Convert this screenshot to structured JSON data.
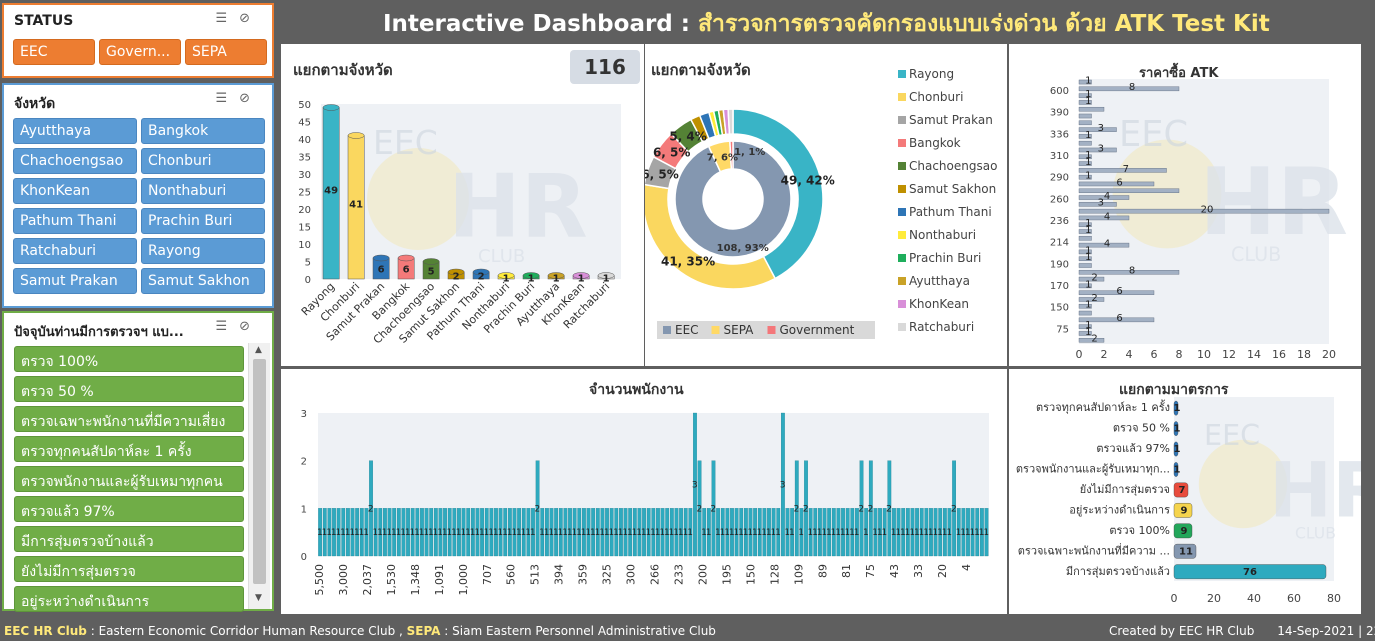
{
  "header": {
    "title_en": "Interactive Dashboard : ",
    "title_th": "สำรวจการตรวจคัดกรองแบบเร่งด่วน ด้วย ATK Test Kit"
  },
  "colors": {
    "title_white": "#ffffff",
    "title_yellow": "#ffe97a",
    "eec": "#8497b0",
    "sepa": "#ffd966",
    "government": "#f4777a",
    "bar_teal": "#2eaabf",
    "bar_yellow": "#f5d44d"
  },
  "status_slicer": {
    "title": "STATUS",
    "items": [
      "EEC",
      "Govern...",
      "SEPA"
    ]
  },
  "province_slicer": {
    "title": "จังหวัด",
    "items": [
      "Ayutthaya",
      "Bangkok",
      "Chachoengsao",
      "Chonburi",
      "KhonKean",
      "Nonthaburi",
      "Pathum Thani",
      "Prachin Buri",
      "Ratchaburi",
      "Rayong",
      "Samut Prakan",
      "Samut Sakhon"
    ]
  },
  "measure_slicer": {
    "title": "ปัจจุบันท่านมีการตรวจฯ แบ...",
    "items": [
      "ตรวจ 100%",
      "ตรวจ 50 %",
      "ตรวจเฉพาะพนักงานที่มีความเสี่ยง",
      "ตรวจทุกคนสัปดาห์ละ 1 ครั้ง",
      "ตรวจพนักงานและผู้รับเหมาทุกคน",
      "ตรวจแล้ว 97%",
      "มีการสุ่มตรวจบ้างแล้ว",
      "ยังไม่มีการสุ่มตรวจ",
      "อยู่ระหว่างดำเนินการ"
    ]
  },
  "panel_province": {
    "title": "แยกตามจังหวัด",
    "total": "116"
  },
  "panel_donut": {
    "title": "แยกตามจังหวัด"
  },
  "panel_price": {
    "title": "ราคาซื้อ ATK"
  },
  "panel_staff": {
    "title": "จำนวนพนักงาน"
  },
  "panel_measure": {
    "title": "แยกตามมาตรการ"
  },
  "watermark": {
    "line1": "EEC",
    "line2": "HR",
    "line3": "CLUB"
  },
  "footer": {
    "left_bold1": "EEC HR Club",
    "left_text1": " : Eastern Economic Corridor Human Resource Club ,  ",
    "left_bold2": "SEPA",
    "left_text2": " : Siam Eastern Personnel Administrative Club",
    "right": "Created by EEC HR Club      14-Sep-2021 | 22:29"
  },
  "chart_data": [
    {
      "type": "bar",
      "id": "province_bar",
      "categories": [
        "Rayong",
        "Chonburi",
        "Samut Prakan",
        "Bangkok",
        "Chachoengsao",
        "Samut Sakhon",
        "Pathum Thani",
        "Nonthaburi",
        "Prachin Buri",
        "Ayutthaya",
        "KhonKean",
        "Ratchaburi"
      ],
      "values": [
        49,
        41,
        6,
        6,
        5,
        2,
        2,
        1,
        1,
        1,
        1,
        1
      ],
      "ylim": [
        0,
        50
      ],
      "yticks": [
        0,
        5,
        10,
        15,
        20,
        25,
        30,
        35,
        40,
        45,
        50
      ]
    },
    {
      "type": "pie",
      "id": "province_donut",
      "outer": {
        "labels": [
          "Rayong",
          "Chonburi",
          "Samut Prakan",
          "Bangkok",
          "Chachoengsao",
          "Samut Sakhon",
          "Pathum Thani",
          "Nonthaburi",
          "Prachin Buri",
          "Ayutthaya",
          "KhonKean",
          "Ratchaburi"
        ],
        "values": [
          49,
          41,
          6,
          6,
          5,
          2,
          2,
          1,
          1,
          1,
          1,
          1
        ],
        "colors": [
          "#39b4c6",
          "#fad75f",
          "#a5a5a5",
          "#f47a7a",
          "#548235",
          "#bf9000",
          "#2e75b6",
          "#ffeb3b",
          "#1fae5c",
          "#c9a227",
          "#d88fd8",
          "#d9d9d9"
        ],
        "data_labels": [
          {
            "i": 0,
            "text": "49, 42%"
          },
          {
            "i": 1,
            "text": "41, 35%"
          },
          {
            "i": 2,
            "text": "6, 5%"
          },
          {
            "i": 3,
            "text": "6, 5%"
          },
          {
            "i": 4,
            "text": "5, 4%"
          }
        ]
      },
      "inner": {
        "labels": [
          "EEC",
          "SEPA",
          "Government"
        ],
        "values": [
          108,
          7,
          1
        ],
        "colors": [
          "#8497b0",
          "#ffd966",
          "#f4777a"
        ],
        "data_labels": [
          {
            "i": 0,
            "text": "108, 93%"
          },
          {
            "i": 1,
            "text": "7, 6%"
          },
          {
            "i": 2,
            "text": "1, 1%"
          }
        ]
      },
      "legend": [
        "EEC",
        "SEPA",
        "Government"
      ]
    },
    {
      "type": "bar",
      "id": "price_bar",
      "orientation": "horizontal",
      "ytick_labels": [
        "600",
        "390",
        "336",
        "310",
        "290",
        "260",
        "236",
        "214",
        "190",
        "170",
        "150",
        "75"
      ],
      "xlim": [
        0,
        20
      ],
      "xticks": [
        0,
        2,
        4,
        6,
        8,
        10,
        12,
        14,
        16,
        18,
        20
      ],
      "values": [
        1,
        8,
        1,
        1,
        2,
        1,
        1,
        3,
        1,
        1,
        3,
        1,
        1,
        7,
        1,
        6,
        8,
        4,
        3,
        20,
        4,
        1,
        1,
        1,
        4,
        1,
        1,
        1,
        8,
        2,
        1,
        6,
        2,
        1,
        1,
        6,
        1,
        1,
        2
      ],
      "labels": [
        "1",
        "8",
        "1",
        "1",
        "",
        "",
        "",
        "3",
        "1",
        "",
        "3",
        "1",
        "1",
        "7",
        "1",
        "6",
        "",
        "4",
        "3",
        "20",
        "4",
        "1",
        "1",
        "",
        "4",
        "1",
        "1",
        "",
        "8",
        "2",
        "1",
        "6",
        "2",
        "1",
        "",
        "6",
        "1",
        "1",
        "2"
      ]
    },
    {
      "type": "bar",
      "id": "staff_bar",
      "xtick_labels": [
        "5,500",
        "3,000",
        "2,037",
        "1,530",
        "1,348",
        "1,091",
        "1,000",
        "707",
        "560",
        "513",
        "394",
        "359",
        "325",
        "300",
        "266",
        "233",
        "200",
        "195",
        "150",
        "128",
        "109",
        "89",
        "81",
        "75",
        "43",
        "33",
        "20",
        "4"
      ],
      "ylim": [
        0,
        3
      ],
      "yticks": [
        0,
        1,
        2,
        3
      ],
      "values": [
        1,
        1,
        1,
        1,
        1,
        1,
        1,
        1,
        1,
        1,
        1,
        2,
        1,
        1,
        1,
        1,
        1,
        1,
        1,
        1,
        1,
        1,
        1,
        1,
        1,
        1,
        1,
        1,
        1,
        1,
        1,
        1,
        1,
        1,
        1,
        1,
        1,
        1,
        1,
        1,
        1,
        1,
        1,
        1,
        1,
        1,
        1,
        2,
        1,
        1,
        1,
        1,
        1,
        1,
        1,
        1,
        1,
        1,
        1,
        1,
        1,
        1,
        1,
        1,
        1,
        1,
        1,
        1,
        1,
        1,
        1,
        1,
        1,
        1,
        1,
        1,
        1,
        1,
        1,
        1,
        1,
        3,
        2,
        1,
        1,
        2,
        1,
        1,
        1,
        1,
        1,
        1,
        1,
        1,
        1,
        1,
        1,
        1,
        1,
        1,
        3,
        1,
        1,
        2,
        1,
        2,
        1,
        1,
        1,
        1,
        1,
        1,
        1,
        1,
        1,
        1,
        1,
        2,
        1,
        2,
        1,
        1,
        1,
        2,
        1,
        1,
        1,
        1,
        1,
        1,
        1,
        1,
        1,
        1,
        1,
        1,
        1,
        2,
        1,
        1,
        1,
        1,
        1,
        1,
        1
      ]
    },
    {
      "type": "bar",
      "id": "measure_bar",
      "orientation": "horizontal",
      "categories": [
        "ตรวจทุกคนสัปดาห์ละ 1 ครั้ง",
        "ตรวจ 50 %",
        "ตรวจแล้ว 97%",
        "ตรวจพนักงานและผู้รับเหมาทุก...",
        "ยังไม่มีการสุ่มตรวจ",
        "อยู่ระหว่างดำเนินการ",
        "ตรวจ 100%",
        "ตรวจเฉพาะพนักงานที่มีความ ...",
        "มีการสุ่มตรวจบ้างแล้ว"
      ],
      "values": [
        1,
        1,
        1,
        1,
        7,
        9,
        9,
        11,
        76
      ],
      "colors": [
        "#2e75b6",
        "#2e75b6",
        "#2e75b6",
        "#2e75b6",
        "#e84c3d",
        "#f5d44d",
        "#22a65a",
        "#8497b0",
        "#2eaabf"
      ],
      "xlim": [
        0,
        80
      ],
      "xticks": [
        0,
        20,
        40,
        60,
        80
      ]
    }
  ]
}
